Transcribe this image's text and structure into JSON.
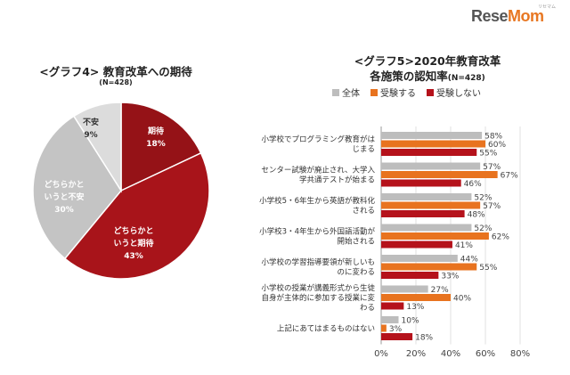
{
  "logo": {
    "text_a": "Rese",
    "text_b": "Mom",
    "sub": "リセマム"
  },
  "pie_title": "<グラフ4> 教育改革への期待",
  "pie_n": "(N=428)",
  "bar_title_1": "<グラフ5>2020年教育改革",
  "bar_title_2": "各施策の認知率",
  "bar_n": "(N=428)",
  "colors": {
    "all": "#bdbdbd",
    "take": "#e8731f",
    "not_take": "#b5121b",
    "anxious": "#dcdcdc",
    "neutral": "#c4c4c4",
    "mixed_exp": "#a8141a",
    "expect": "#951217"
  },
  "chart_data": [
    {
      "type": "pie",
      "title": "<グラフ4> 教育改革への期待",
      "subtitle": "(N=428)",
      "slices": [
        {
          "label": "期待",
          "value": 18,
          "display": "18%"
        },
        {
          "label": "どちらかと\nいうと期待",
          "value": 43,
          "display": "43%"
        },
        {
          "label": "どちらかと\nいうと不安",
          "value": 30,
          "display": "30%"
        },
        {
          "label": "不安",
          "value": 9,
          "display": "9%"
        }
      ],
      "colors": [
        "#951217",
        "#a8141a",
        "#c4c4c4",
        "#dcdcdc"
      ],
      "start_angle": "12 o'clock, clockwise"
    },
    {
      "type": "bar",
      "orientation": "horizontal",
      "title": "<グラフ5>2020年教育改革 各施策の認知率",
      "subtitle": "(N=428)",
      "categories": [
        "小学校でプログラミング教育がは\nじまる",
        "センター試験が廃止され、大学入\n学共通テストが始まる",
        "小学校5・6年生から英語が教科化\nされる",
        "小学校3・4年生から外国語活動が\n開始される",
        "小学校の学習指導要領が新しいも\nのに変わる",
        "小学校の授業が講義形式から生徒\n自身が主体的に参加する授業に変\nわる",
        "上記にあてはまるものはない"
      ],
      "series": [
        {
          "name": "全体",
          "values": [
            58,
            57,
            52,
            52,
            44,
            27,
            10
          ],
          "color": "#bdbdbd"
        },
        {
          "name": "受験する",
          "values": [
            60,
            67,
            57,
            62,
            55,
            40,
            3
          ],
          "color": "#e8731f"
        },
        {
          "name": "受験しない",
          "values": [
            55,
            46,
            48,
            41,
            33,
            13,
            18
          ],
          "color": "#b5121b"
        }
      ],
      "x_ticks": [
        "0%",
        "20%",
        "40%",
        "60%",
        "80%"
      ],
      "xlim": [
        0,
        80
      ],
      "legend": "top",
      "grid": true
    }
  ]
}
